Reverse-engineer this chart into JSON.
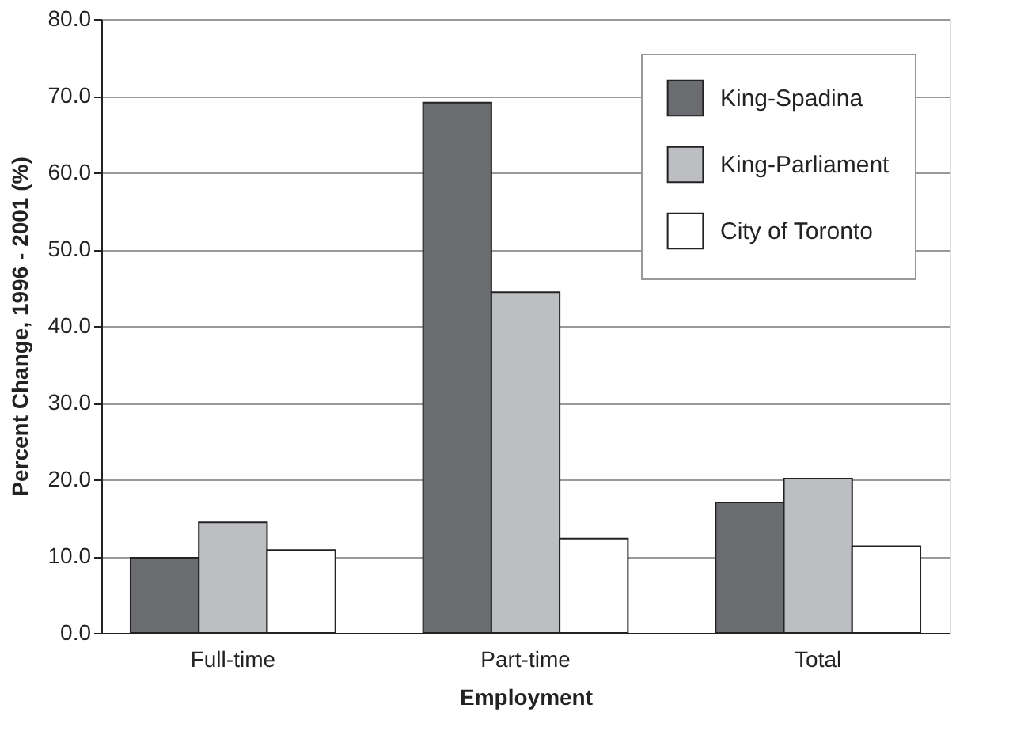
{
  "chart_data": {
    "type": "bar",
    "xlabel": "Employment",
    "ylabel": "Percent Change, 1996 - 2001 (%)",
    "categories": [
      "Full-time",
      "Part-time",
      "Total"
    ],
    "series": [
      {
        "name": "King-Spadina",
        "color": "#6b6c70",
        "values": [
          9.8,
          69.1,
          17.0
        ]
      },
      {
        "name": "King-Parliament",
        "color": "#bdbec2",
        "values": [
          14.4,
          44.4,
          20.1
        ]
      },
      {
        "name": "City of Toronto",
        "color": "#ffffff",
        "values": [
          10.8,
          12.3,
          11.3
        ]
      }
    ],
    "ylim": [
      0,
      80
    ],
    "yticks": [
      {
        "value": 0,
        "label": "0.0"
      },
      {
        "value": 10,
        "label": "10.0"
      },
      {
        "value": 20,
        "label": "20.0"
      },
      {
        "value": 30,
        "label": "30.0"
      },
      {
        "value": 40,
        "label": "40.0"
      },
      {
        "value": 50,
        "label": "50.0"
      },
      {
        "value": 60,
        "label": "60.0"
      },
      {
        "value": 70,
        "label": "70.0"
      },
      {
        "value": 80,
        "label": "80.0"
      }
    ],
    "grid": "y",
    "legend": "top right"
  }
}
